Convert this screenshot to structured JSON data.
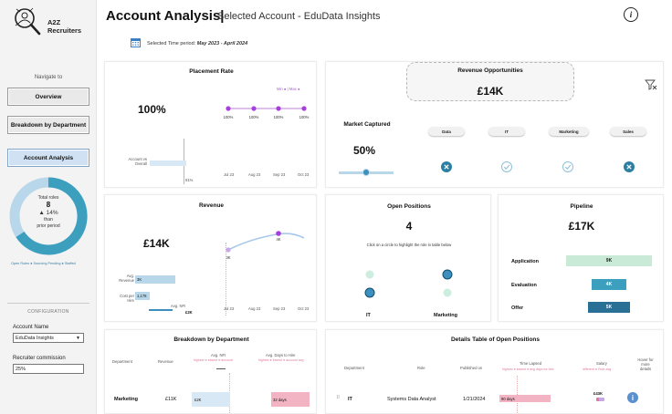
{
  "sidebar": {
    "brand": "A2Z Recruiters",
    "navigate_label": "Navigate to",
    "nav": {
      "overview": "Overview",
      "breakdown": "Breakdown by Department",
      "account": "Account Analysis"
    },
    "donut": {
      "label": "Total roles",
      "value": "8",
      "change": "▲ 14%",
      "than": "than",
      "prior": "prior period",
      "legend": "Open Roles ● Sourcing Pending ● Staffed"
    },
    "config_label": "CONFIGURATION",
    "account_label": "Account Name",
    "account_value": "EduData Insights",
    "commission_label": "Recruiter commission",
    "commission_value": "25%"
  },
  "header": {
    "title": "Account Analysis|",
    "subtitle": "Selected Account - EduData Insights",
    "period_label": "Selected Time period: ",
    "period_value": "May 2023 - April 2024"
  },
  "placement": {
    "title": "Placement Rate",
    "kpi": "100%",
    "legend_min": "Min",
    "legend_max": "Max",
    "points": [
      "100%",
      "100%",
      "100%",
      "100%"
    ],
    "months": [
      "Jul 23",
      "Aug 23",
      "Sep 23",
      "Oct 23"
    ],
    "vs_label_1": "Account vs",
    "vs_label_2": "Overall",
    "vs_value": "91%"
  },
  "revenue_opps": {
    "title": "Revenue Opportunities",
    "kpi": "£14K",
    "market_title": "Market Captured",
    "market_pct": "50%",
    "departments": [
      "Data",
      "IT",
      "Marketing",
      "Sales"
    ]
  },
  "revenue": {
    "title": "Revenue",
    "kpi": "£14K",
    "points": [
      "3K",
      "4K"
    ],
    "months": [
      "Jul 23",
      "Aug 23",
      "Sep 23",
      "Oct 23"
    ],
    "avg_rev_1": "Avg.",
    "avg_rev_2": "Revenue",
    "avg_rev_val": "3K",
    "cost_1": "Cost per",
    "cost_2": "Hire",
    "cost_val": "1,178",
    "avg_nfi": "Avg. NFI",
    "avg_nfi_val": "£2K"
  },
  "open_positions": {
    "title": "Open Positions",
    "kpi": "4",
    "hint": "Click on a circle to highlight the role in table below",
    "col_it": "IT",
    "col_marketing": "Marketing"
  },
  "pipeline": {
    "title": "Pipeline",
    "kpi": "£17K",
    "stages": [
      {
        "label": "Application",
        "value": "9K"
      },
      {
        "label": "Evaluation",
        "value": "4K"
      },
      {
        "label": "Offer",
        "value": "5K"
      }
    ]
  },
  "breakdown": {
    "title": "Breakdown by Department",
    "headers": {
      "dept": "Department",
      "revenue": "Revenue",
      "nfi": "Avg. NFI",
      "days": "Avg. Days to Hire"
    },
    "nfi_legend": "highest ● lowest ● account",
    "days_legend": "highest ● lowest ● account avg",
    "row": {
      "dept": "Marketing",
      "revenue": "£11K",
      "nfi": "£2K",
      "days": "32 days"
    }
  },
  "details": {
    "title": "Details Table of Open Positions",
    "headers": {
      "dept": "Department",
      "role": "Role",
      "published": "Published on",
      "time": "Time Lapsed",
      "salary": "Salary",
      "hover_1": "Hover for",
      "hover_2": "more",
      "hover_3": "details"
    },
    "time_legend": "highest ● lowest ● avg days for hire",
    "salary_legend": "different ● Role avg",
    "row": {
      "dept": "IT",
      "role": "Systems Data Analyst",
      "published": "1/21/2024",
      "time": "90 days",
      "salary": "£43K"
    }
  }
}
